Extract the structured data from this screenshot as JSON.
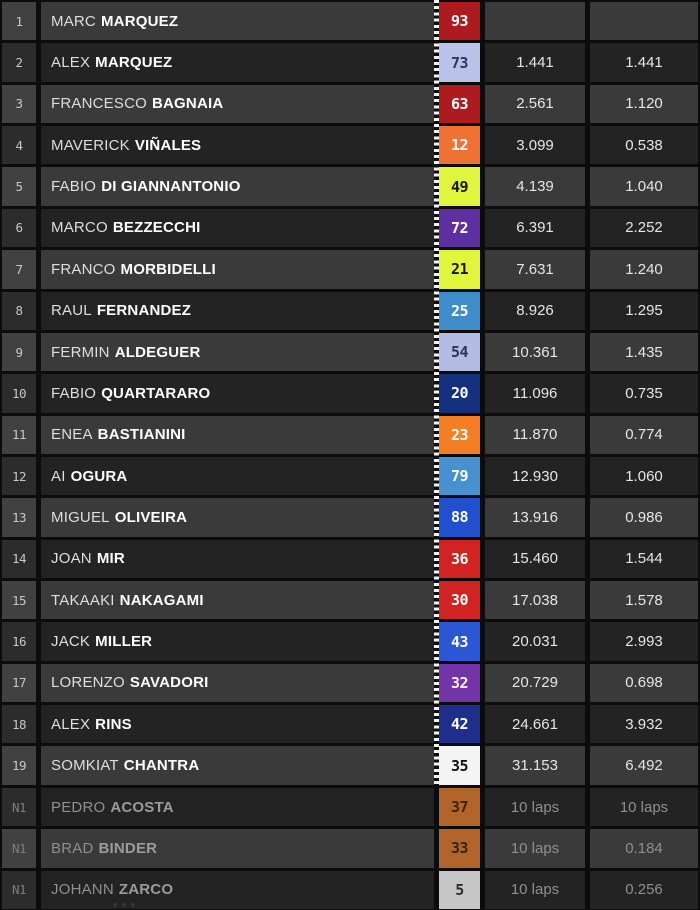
{
  "app": {
    "description_colors": {
      "background": "#0c0c0c",
      "row_light": "#3a3a3b",
      "row_dark": "#232324",
      "divider": "#0c0c0c",
      "dotted_strip": "#f2f2f2"
    }
  },
  "results_table": {
    "columns": [
      "position",
      "rider_name",
      "rider_number",
      "gap_to_leader",
      "gap_to_previous"
    ],
    "rows": [
      {
        "pos": "1",
        "first": "MARC",
        "last": "MARQUEZ",
        "num": "93",
        "num_bg": "#ae1b1f",
        "num_fg": "#ffffff",
        "gap1": "",
        "gap2": "",
        "dim": false
      },
      {
        "pos": "2",
        "first": "ALEX",
        "last": "MARQUEZ",
        "num": "73",
        "num_bg": "#b9c3ea",
        "num_fg": "#2b3563",
        "gap1": "1.441",
        "gap2": "1.441",
        "dim": false
      },
      {
        "pos": "3",
        "first": "FRANCESCO",
        "last": "BAGNAIA",
        "num": "63",
        "num_bg": "#ae1b1f",
        "num_fg": "#ffffff",
        "gap1": "2.561",
        "gap2": "1.120",
        "dim": false
      },
      {
        "pos": "4",
        "first": "MAVERICK",
        "last": "VIÑALES",
        "num": "12",
        "num_bg": "#ef7133",
        "num_fg": "#ffffff",
        "gap1": "3.099",
        "gap2": "0.538",
        "dim": false
      },
      {
        "pos": "5",
        "first": "FABIO",
        "last": "DI GIANNANTONIO",
        "num": "49",
        "num_bg": "#e2f53d",
        "num_fg": "#15160a",
        "gap1": "4.139",
        "gap2": "1.040",
        "dim": false
      },
      {
        "pos": "6",
        "first": "MARCO",
        "last": "BEZZECCHI",
        "num": "72",
        "num_bg": "#5e2f9f",
        "num_fg": "#ffffff",
        "gap1": "6.391",
        "gap2": "2.252",
        "dim": false
      },
      {
        "pos": "7",
        "first": "FRANCO",
        "last": "MORBIDELLI",
        "num": "21",
        "num_bg": "#e2f53d",
        "num_fg": "#15160a",
        "gap1": "7.631",
        "gap2": "1.240",
        "dim": false
      },
      {
        "pos": "8",
        "first": "RAUL",
        "last": "FERNANDEZ",
        "num": "25",
        "num_bg": "#3f8cca",
        "num_fg": "#ffffff",
        "gap1": "8.926",
        "gap2": "1.295",
        "dim": false
      },
      {
        "pos": "9",
        "first": "FERMIN",
        "last": "ALDEGUER",
        "num": "54",
        "num_bg": "#b5bce3",
        "num_fg": "#2b3563",
        "gap1": "10.361",
        "gap2": "1.435",
        "dim": false
      },
      {
        "pos": "10",
        "first": "FABIO",
        "last": "QUARTARARO",
        "num": "20",
        "num_bg": "#14307f",
        "num_fg": "#ffffff",
        "gap1": "11.096",
        "gap2": "0.735",
        "dim": false
      },
      {
        "pos": "11",
        "first": "ENEA",
        "last": "BASTIANINI",
        "num": "23",
        "num_bg": "#f57e24",
        "num_fg": "#ffffff",
        "gap1": "11.870",
        "gap2": "0.774",
        "dim": false
      },
      {
        "pos": "12",
        "first": "AI",
        "last": "OGURA",
        "num": "79",
        "num_bg": "#4791cf",
        "num_fg": "#ffffff",
        "gap1": "12.930",
        "gap2": "1.060",
        "dim": false
      },
      {
        "pos": "13",
        "first": "MIGUEL",
        "last": "OLIVEIRA",
        "num": "88",
        "num_bg": "#2150ce",
        "num_fg": "#ffffff",
        "gap1": "13.916",
        "gap2": "0.986",
        "dim": false
      },
      {
        "pos": "14",
        "first": "JOAN",
        "last": "MIR",
        "num": "36",
        "num_bg": "#d02322",
        "num_fg": "#ffffff",
        "gap1": "15.460",
        "gap2": "1.544",
        "dim": false
      },
      {
        "pos": "15",
        "first": "TAKAAKI",
        "last": "NAKAGAMI",
        "num": "30",
        "num_bg": "#d02322",
        "num_fg": "#ffffff",
        "gap1": "17.038",
        "gap2": "1.578",
        "dim": false
      },
      {
        "pos": "16",
        "first": "JACK",
        "last": "MILLER",
        "num": "43",
        "num_bg": "#2b57d5",
        "num_fg": "#ffffff",
        "gap1": "20.031",
        "gap2": "2.993",
        "dim": false
      },
      {
        "pos": "17",
        "first": "LORENZO",
        "last": "SAVADORI",
        "num": "32",
        "num_bg": "#7334a7",
        "num_fg": "#ffeef5",
        "gap1": "20.729",
        "gap2": "0.698",
        "dim": false
      },
      {
        "pos": "18",
        "first": "ALEX",
        "last": "RINS",
        "num": "42",
        "num_bg": "#1d2f8a",
        "num_fg": "#ffffff",
        "gap1": "24.661",
        "gap2": "3.932",
        "dim": false
      },
      {
        "pos": "19",
        "first": "SOMKIAT",
        "last": "CHANTRA",
        "num": "35",
        "num_bg": "#f4f4f4",
        "num_fg": "#111111",
        "gap1": "31.153",
        "gap2": "6.492",
        "dim": false
      },
      {
        "pos": "N1",
        "first": "PEDRO",
        "last": "ACOSTA",
        "num": "37",
        "num_bg": "#b1652b",
        "num_fg": "#3b2310",
        "gap1": "10 laps",
        "gap2": "10 laps",
        "dim": true
      },
      {
        "pos": "N1",
        "first": "BRAD",
        "last": "BINDER",
        "num": "33",
        "num_bg": "#b1652b",
        "num_fg": "#3b2310",
        "gap1": "10 laps",
        "gap2": "0.184",
        "dim": true
      },
      {
        "pos": "N1",
        "first": "JOHANN",
        "last": "ZARCO",
        "num": "5",
        "num_bg": "#c6c6c6",
        "num_fg": "#2e2e2e",
        "gap1": "10 laps",
        "gap2": "0.256",
        "dim": true
      }
    ]
  }
}
